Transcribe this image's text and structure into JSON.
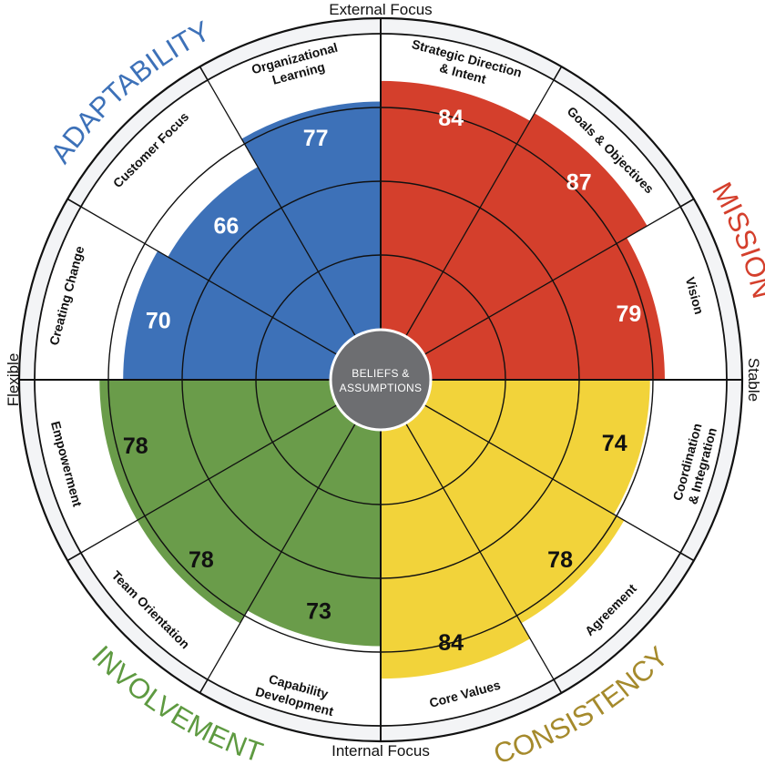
{
  "axes": {
    "top": "External Focus",
    "bottom": "Internal Focus",
    "left": "Flexible",
    "right": "Stable"
  },
  "center": {
    "line1": "BELIEFS &",
    "line2": "ASSUMPTIONS",
    "color": "#6d6e71"
  },
  "traits": [
    {
      "key": "mission",
      "label": "MISSION",
      "color": "#d43f2c",
      "text_color": "#d43f2c"
    },
    {
      "key": "consistency",
      "label": "CONSISTENCY",
      "color": "#f2d33a",
      "text_color": "#a58a2c"
    },
    {
      "key": "involvement",
      "label": "INVOLVEMENT",
      "color": "#6a9c4a",
      "text_color": "#5e9a41"
    },
    {
      "key": "adaptability",
      "label": "ADAPTABILITY",
      "color": "#3d71b8",
      "text_color": "#3d71b8"
    }
  ],
  "chart_data": {
    "type": "polar-bar",
    "indexes": [
      {
        "trait": "mission",
        "lines": [
          "Strategic Direction",
          "& Intent"
        ],
        "value": 84
      },
      {
        "trait": "mission",
        "lines": [
          "Goals & Objectives"
        ],
        "value": 87
      },
      {
        "trait": "mission",
        "lines": [
          "Vision"
        ],
        "value": 79
      },
      {
        "trait": "consistency",
        "lines": [
          "Coordination",
          "& Integration"
        ],
        "value": 74
      },
      {
        "trait": "consistency",
        "lines": [
          "Agreement"
        ],
        "value": 78
      },
      {
        "trait": "consistency",
        "lines": [
          "Core Values"
        ],
        "value": 84
      },
      {
        "trait": "involvement",
        "lines": [
          "Capability",
          "Development"
        ],
        "value": 73
      },
      {
        "trait": "involvement",
        "lines": [
          "Team Orientation"
        ],
        "value": 78
      },
      {
        "trait": "involvement",
        "lines": [
          "Empowerment"
        ],
        "value": 78
      },
      {
        "trait": "adaptability",
        "lines": [
          "Creating Change"
        ],
        "value": 70
      },
      {
        "trait": "adaptability",
        "lines": [
          "Customer Focus"
        ],
        "value": 66
      },
      {
        "trait": "adaptability",
        "lines": [
          "Organizational",
          "Learning"
        ],
        "value": 77
      }
    ],
    "rings": [
      25,
      50,
      75,
      100
    ]
  }
}
